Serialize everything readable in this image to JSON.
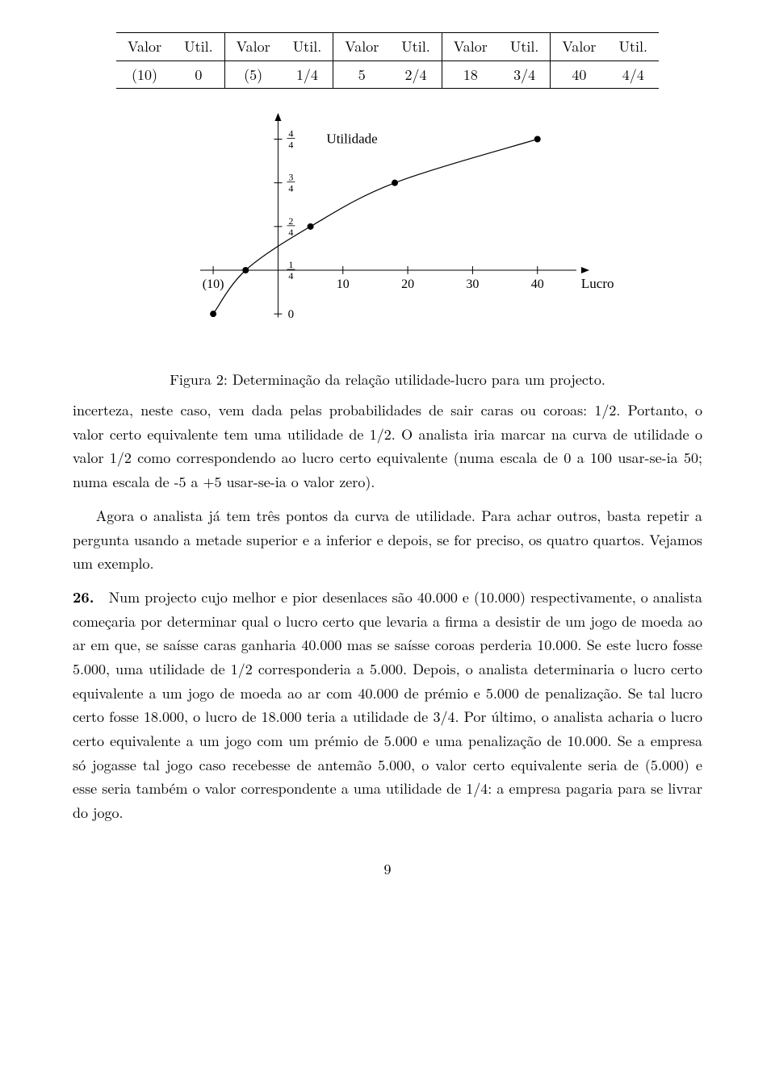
{
  "table": {
    "headers": [
      "Valor",
      "Util.",
      "Valor",
      "Util.",
      "Valor",
      "Util.",
      "Valor",
      "Util.",
      "Valor",
      "Util."
    ],
    "row": [
      "(10)",
      "0",
      "(5)",
      "1/4",
      "5",
      "2/4",
      "18",
      "3/4",
      "40",
      "4/4"
    ]
  },
  "chart": {
    "type": "line",
    "x_label": "Lucro",
    "y_label": "Utilidade",
    "x_ticks": [
      {
        "v": -10,
        "label": "(10)"
      },
      {
        "v": 10,
        "label": "10"
      },
      {
        "v": 20,
        "label": "20"
      },
      {
        "v": 30,
        "label": "30"
      },
      {
        "v": 40,
        "label": "40"
      }
    ],
    "y_ticks": [
      {
        "v": 0,
        "num": "0",
        "den": ""
      },
      {
        "v": 0.25,
        "num": "1",
        "den": "4"
      },
      {
        "v": 0.5,
        "num": "2",
        "den": "4"
      },
      {
        "v": 0.75,
        "num": "3",
        "den": "4"
      },
      {
        "v": 1.0,
        "num": "4",
        "den": "4"
      }
    ],
    "points": [
      {
        "x": -10,
        "y": 0
      },
      {
        "x": -5,
        "y": 0.25
      },
      {
        "x": 5,
        "y": 0.5
      },
      {
        "x": 18,
        "y": 0.75
      },
      {
        "x": 40,
        "y": 1.0
      }
    ],
    "xlim": [
      -13,
      48
    ],
    "ylim": [
      -0.05,
      1.15
    ],
    "colors": {
      "axis": "#000000",
      "line": "#000000",
      "point": "#000000",
      "background": "#ffffff"
    },
    "marker_radius": 4,
    "line_width": 1.2,
    "axis_width": 1.0
  },
  "figcaption": "Figura 2: Determinação da relação utilidade-lucro para um projecto.",
  "paragraphs": {
    "p1": "incerteza, neste caso, vem dada pelas probabilidades de sair caras ou coroas: 1/2. Portanto, o valor certo equivalente tem uma utilidade de 1/2. O analista iria marcar na curva de utilidade o valor 1/2 como correspondendo ao lucro certo equivalente (numa escala de 0 a 100 usar-se-ia 50; numa escala de -5 a +5 usar-se-ia o valor zero).",
    "p2": "Agora o analista já tem três pontos da curva de utilidade. Para achar outros, basta repetir a pergunta usando a metade superior e a inferior e depois, se for preciso, os quatro quartos. Vejamos um exemplo.",
    "p3_lead": "26.",
    "p3": "Num projecto cujo melhor e pior desenlaces são 40.000 e (10.000) respectivamente, o analista começaria por determinar qual o lucro certo que levaria a firma a desistir de um jogo de moeda ao ar em que, se saísse caras ganharia 40.000 mas se saísse coroas perderia 10.000. Se este lucro fosse 5.000, uma utilidade de 1/2 corresponderia a 5.000. Depois, o analista determinaria o lucro certo equivalente a um jogo de moeda ao ar com 40.000 de prémio e 5.000 de penalização. Se tal lucro certo fosse 18.000, o lucro de 18.000 teria a utilidade de 3/4. Por último, o analista acharia o lucro certo equivalente a um jogo com um prémio de 5.000 e uma penalização de 10.000. Se a empresa só jogasse tal jogo caso recebesse de antemão 5.000, o valor certo equivalente seria de (5.000) e esse seria também o valor correspondente a uma utilidade de 1/4: a empresa pagaria para se livrar do jogo."
  },
  "pagenum": "9"
}
